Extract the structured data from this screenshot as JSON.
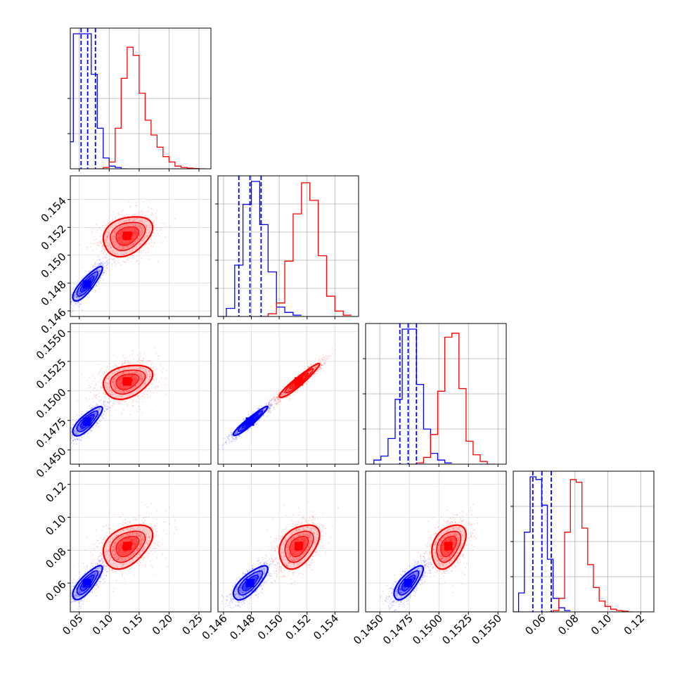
{
  "chart_data": {
    "type": "corner",
    "description_of_series_colors": {
      "blue": "#0000ff",
      "red": "#ff0000"
    },
    "series": [
      {
        "color": "#0000ff"
      },
      {
        "color": "#ff0000"
      }
    ],
    "grid": true,
    "parameters": [
      {
        "range": [
          0.035,
          0.27
        ],
        "ticks": [
          0.05,
          0.1,
          0.15,
          0.2,
          0.25
        ],
        "tick_labels": [
          "0.05",
          "0.10",
          "0.15",
          "0.20",
          "0.25"
        ]
      },
      {
        "range": [
          0.1456,
          0.1557
        ],
        "ticks": [
          0.146,
          0.148,
          0.15,
          0.152,
          0.154
        ],
        "tick_labels": [
          "0.146",
          "0.148",
          "0.150",
          "0.152",
          "0.154"
        ]
      },
      {
        "range": [
          0.1438,
          0.1557
        ],
        "ticks": [
          0.145,
          0.1475,
          0.15,
          0.1525,
          0.155
        ],
        "tick_labels": [
          "0.1450",
          "0.1475",
          "0.1500",
          "0.1525",
          "0.1550"
        ]
      },
      {
        "range": [
          0.0425,
          0.128
        ],
        "ticks": [
          0.06,
          0.08,
          0.1,
          0.12
        ],
        "tick_labels": [
          "0.06",
          "0.08",
          "0.10",
          "0.12"
        ]
      }
    ],
    "marginals": [
      {
        "blue": {
          "x": [
            0.035,
            0.045,
            0.055,
            0.065,
            0.075,
            0.085,
            0.095,
            0.105,
            0.115,
            0.125
          ],
          "y": [
            20,
            100,
            100,
            100,
            70,
            30,
            8,
            2,
            1,
            0
          ]
        },
        "red": {
          "x": [
            0.085,
            0.095,
            0.105,
            0.115,
            0.125,
            0.135,
            0.145,
            0.155,
            0.165,
            0.175,
            0.185,
            0.195,
            0.205,
            0.215,
            0.225,
            0.235,
            0.245,
            0.255
          ],
          "y": [
            0,
            1,
            5,
            30,
            67,
            90,
            84,
            56,
            36,
            25,
            16,
            9,
            5,
            2,
            1,
            0.5,
            0.2,
            0
          ]
        },
        "quantile_lines_blue": [
          0.053,
          0.064,
          0.077
        ],
        "yticks": [
          0.25,
          0.5
        ]
      },
      {
        "blue": {
          "x": [
            0.1459,
            0.1465,
            0.1471,
            0.1477,
            0.1483,
            0.1489,
            0.1495,
            0.1501,
            0.1507,
            0.1513
          ],
          "y": [
            0,
            6,
            38,
            83,
            100,
            68,
            33,
            7,
            3,
            1
          ]
        },
        "red": {
          "x": [
            0.1489,
            0.1495,
            0.1501,
            0.1507,
            0.1513,
            0.1519,
            0.1525,
            0.1531,
            0.1537,
            0.1543,
            0.1549
          ],
          "y": [
            0,
            2,
            10,
            41,
            76,
            99,
            86,
            45,
            15,
            4,
            1
          ]
        },
        "quantile_lines_blue": [
          0.1471,
          0.1479,
          0.1487
        ],
        "yticks": [
          0.2,
          0.4,
          0.6,
          0.8
        ]
      },
      {
        "blue": {
          "x": [
            0.1442,
            0.1448,
            0.1454,
            0.146,
            0.1466,
            0.1472,
            0.1478,
            0.1484,
            0.149,
            0.1496,
            0.1502,
            0.1508
          ],
          "y": [
            0,
            3,
            6,
            19,
            48,
            100,
            100,
            59,
            26,
            8,
            3,
            1
          ]
        },
        "red": {
          "x": [
            0.1478,
            0.1484,
            0.149,
            0.1496,
            0.1502,
            0.1508,
            0.1514,
            0.152,
            0.1526,
            0.1532,
            0.1538,
            0.1544
          ],
          "y": [
            0,
            1,
            5,
            22,
            54,
            94,
            97,
            56,
            17,
            7,
            2,
            0
          ]
        },
        "quantile_lines_blue": [
          0.1467,
          0.1474,
          0.1481
        ],
        "yticks": [
          0.25,
          0.5,
          0.75
        ]
      },
      {
        "blue": {
          "x": [
            0.044,
            0.0475,
            0.051,
            0.0545,
            0.058,
            0.0615,
            0.065,
            0.0685,
            0.072,
            0.0755
          ],
          "y": [
            0,
            14,
            59,
            100,
            98,
            79,
            39,
            10,
            3,
            1
          ]
        },
        "red": {
          "x": [
            0.065,
            0.0685,
            0.072,
            0.0755,
            0.079,
            0.0825,
            0.086,
            0.0895,
            0.093,
            0.0965,
            0.1,
            0.1035,
            0.107,
            0.1105,
            0.114
          ],
          "y": [
            0,
            1,
            10,
            59,
            98,
            96,
            62,
            35,
            18,
            8,
            4,
            2,
            1,
            0.5,
            0
          ]
        },
        "quantile_lines_blue": [
          0.0544,
          0.0599,
          0.0656
        ],
        "yticks": [
          0.25,
          0.5,
          0.75
        ]
      }
    ],
    "joint": {
      "blue": {
        "mean": [
          0.063,
          0.1479,
          0.1474,
          0.06
        ],
        "sd": [
          0.012,
          0.0006,
          0.0006,
          0.005
        ],
        "corr": [
          [
            1,
            0.85,
            0.8,
            0.8
          ],
          [
            0.85,
            1,
            0.95,
            0.75
          ],
          [
            0.8,
            0.95,
            1,
            0.75
          ],
          [
            0.8,
            0.75,
            0.75,
            1
          ]
        ]
      },
      "red": {
        "mean": [
          0.13,
          0.1514,
          0.1508,
          0.0825
        ],
        "sd": [
          0.02,
          0.0007,
          0.0007,
          0.0065
        ],
        "corr": [
          [
            1,
            0.3,
            0.3,
            0.4
          ],
          [
            0.3,
            1,
            0.95,
            0.4
          ],
          [
            0.3,
            0.95,
            1,
            0.4
          ],
          [
            0.4,
            0.4,
            0.4,
            1
          ]
        ]
      }
    }
  }
}
